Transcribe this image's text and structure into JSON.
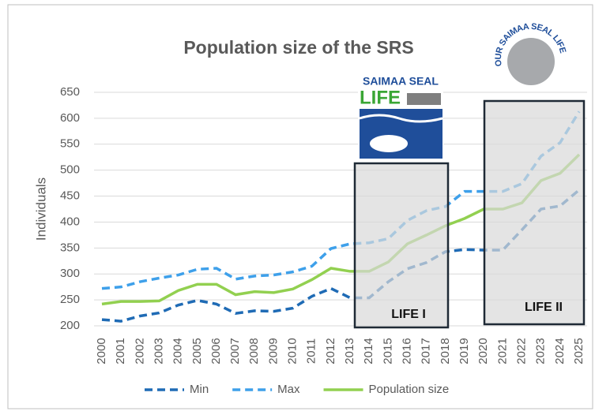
{
  "chart_data": {
    "type": "line",
    "title": "Population size of the SRS",
    "ylabel": "Individuals",
    "categories": [
      "2000",
      "2001",
      "2002",
      "2003",
      "2004",
      "2005",
      "2006",
      "2007",
      "2008",
      "2009",
      "2010",
      "2011",
      "2012",
      "2013",
      "2014",
      "2015",
      "2016",
      "2017",
      "2018",
      "2019",
      "2020",
      "2021",
      "2022",
      "2023",
      "2024",
      "2025"
    ],
    "series": [
      {
        "name": "Min",
        "color": "#1f6bb5",
        "dashed": true,
        "values": [
          212,
          209,
          219,
          225,
          240,
          249,
          242,
          224,
          229,
          228,
          234,
          257,
          272,
          254,
          254,
          285,
          310,
          322,
          343,
          347,
          346,
          346,
          385,
          425,
          431,
          462
        ]
      },
      {
        "name": "Max",
        "color": "#3ea0ea",
        "dashed": true,
        "values": [
          272,
          275,
          285,
          292,
          298,
          309,
          311,
          290,
          296,
          298,
          304,
          315,
          349,
          358,
          360,
          368,
          403,
          422,
          430,
          459,
          459,
          459,
          474,
          527,
          553,
          613
        ]
      },
      {
        "name": "Population size",
        "color": "#92d050",
        "dashed": false,
        "values": [
          242,
          247,
          247,
          248,
          268,
          280,
          280,
          260,
          266,
          264,
          271,
          289,
          311,
          305,
          305,
          323,
          358,
          375,
          393,
          407,
          425,
          425,
          437,
          480,
          494,
          530
        ]
      }
    ],
    "ylim": [
      200,
      650
    ],
    "yticks": [
      200,
      250,
      300,
      350,
      400,
      450,
      500,
      550,
      600,
      650
    ],
    "grid": true,
    "legend": "bottom",
    "annotations": [
      "LIFE I",
      "LIFE II"
    ],
    "logo_texts": [
      "SAIMAA SEAL",
      "LIFE",
      "OUR SAIMAA SEAL LIFE"
    ]
  }
}
